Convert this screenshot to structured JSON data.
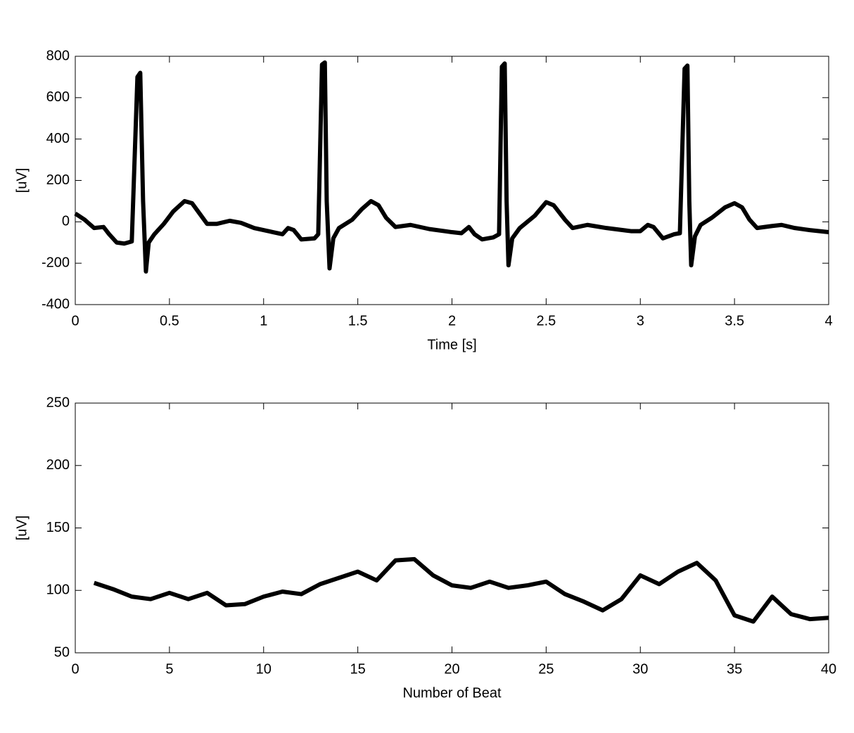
{
  "chart_data": [
    {
      "type": "line",
      "ylabel": "[uV]",
      "xlabel": "Time [s]",
      "x": [
        0,
        0.05,
        0.1,
        0.15,
        0.18,
        0.22,
        0.26,
        0.3,
        0.33,
        0.345,
        0.36,
        0.375,
        0.39,
        0.42,
        0.47,
        0.52,
        0.58,
        0.62,
        0.66,
        0.7,
        0.75,
        0.82,
        0.88,
        0.95,
        1.05,
        1.1,
        1.13,
        1.16,
        1.2,
        1.27,
        1.29,
        1.31,
        1.325,
        1.335,
        1.35,
        1.37,
        1.4,
        1.47,
        1.52,
        1.57,
        1.61,
        1.65,
        1.7,
        1.78,
        1.88,
        2.0,
        2.05,
        2.09,
        2.12,
        2.16,
        2.22,
        2.25,
        2.265,
        2.28,
        2.29,
        2.3,
        2.32,
        2.36,
        2.44,
        2.5,
        2.54,
        2.6,
        2.64,
        2.72,
        2.82,
        2.95,
        3.0,
        3.04,
        3.07,
        3.12,
        3.18,
        3.21,
        3.235,
        3.25,
        3.26,
        3.27,
        3.29,
        3.32,
        3.38,
        3.45,
        3.5,
        3.54,
        3.58,
        3.62,
        3.7,
        3.75,
        3.82,
        3.9,
        4.0
      ],
      "series": [
        {
          "color": "#000000",
          "values": [
            40,
            10,
            -30,
            -25,
            -60,
            -100,
            -105,
            -95,
            700,
            720,
            100,
            -240,
            -100,
            -60,
            -10,
            50,
            100,
            90,
            40,
            -10,
            -10,
            5,
            -5,
            -30,
            -50,
            -60,
            -30,
            -40,
            -85,
            -80,
            -60,
            760,
            770,
            100,
            -225,
            -80,
            -30,
            10,
            60,
            100,
            80,
            20,
            -25,
            -15,
            -35,
            -50,
            -55,
            -25,
            -60,
            -85,
            -75,
            -60,
            750,
            765,
            100,
            -210,
            -80,
            -30,
            30,
            95,
            80,
            10,
            -30,
            -15,
            -30,
            -45,
            -45,
            -15,
            -25,
            -80,
            -60,
            -55,
            740,
            755,
            100,
            -210,
            -70,
            -15,
            20,
            70,
            90,
            70,
            10,
            -30,
            -20,
            -15,
            -30,
            -40,
            -50
          ]
        }
      ],
      "xlim": [
        0,
        4
      ],
      "ylim": [
        -400,
        800
      ],
      "xticks": [
        0,
        0.5,
        1,
        1.5,
        2,
        2.5,
        3,
        3.5,
        4
      ],
      "yticks": [
        -400,
        -200,
        0,
        200,
        400,
        600,
        800
      ]
    },
    {
      "type": "line",
      "ylabel": "[uV]",
      "xlabel": "Number of Beat",
      "x": [
        1,
        2,
        3,
        4,
        5,
        6,
        7,
        8,
        9,
        10,
        11,
        12,
        13,
        14,
        15,
        16,
        17,
        18,
        19,
        20,
        21,
        22,
        23,
        24,
        25,
        26,
        27,
        28,
        29,
        30,
        31,
        32,
        33,
        34,
        35,
        36,
        37,
        38,
        39,
        40
      ],
      "series": [
        {
          "color": "#000000",
          "values": [
            106,
            101,
            95,
            93,
            98,
            93,
            98,
            88,
            89,
            95,
            99,
            97,
            105,
            110,
            115,
            108,
            124,
            125,
            112,
            104,
            102,
            107,
            102,
            104,
            107,
            97,
            91,
            84,
            93,
            112,
            105,
            115,
            122,
            108,
            80,
            75,
            95,
            81,
            77,
            78
          ]
        }
      ],
      "xlim": [
        0,
        40
      ],
      "ylim": [
        50,
        250
      ],
      "xticks": [
        0,
        5,
        10,
        15,
        20,
        25,
        30,
        35,
        40
      ],
      "yticks": [
        50,
        100,
        150,
        200,
        250
      ]
    }
  ]
}
